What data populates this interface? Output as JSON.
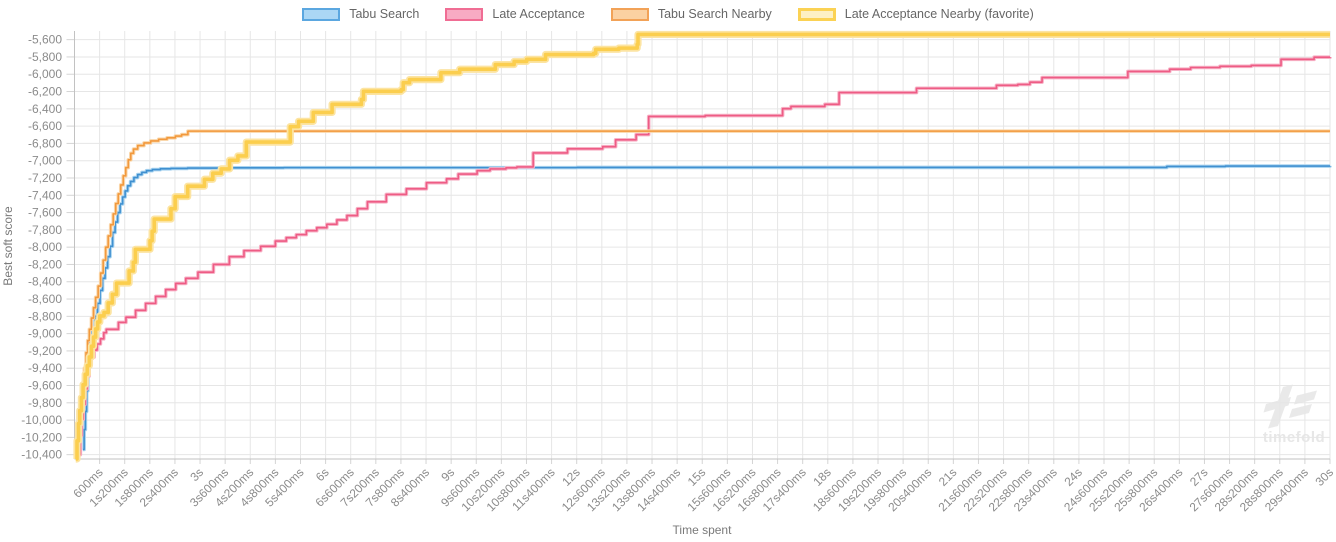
{
  "legend": {
    "items": [
      {
        "label": "Tabu Search"
      },
      {
        "label": "Late Acceptance"
      },
      {
        "label": "Tabu Search Nearby"
      },
      {
        "label": "Late Acceptance Nearby (favorite)"
      }
    ]
  },
  "axes": {
    "y_title": "Best soft score",
    "x_title": "Time spent"
  },
  "watermark": {
    "text": "timefold"
  },
  "colors": {
    "grid": "#e6e6e6",
    "axis_line": "#c2c2c2",
    "tick_stub": "#d4d4d4",
    "tick_text": "#8b8b8b"
  },
  "chart_data": {
    "type": "line",
    "stepped": true,
    "title": "",
    "xlabel": "Time spent",
    "ylabel": "Best soft score",
    "xlim_ms": [
      0,
      30000
    ],
    "ylim": [
      -10450,
      -5500
    ],
    "grid": true,
    "legend_position": "top",
    "x_ticks": [
      {
        "t": 600,
        "label": "600ms"
      },
      {
        "t": 1200,
        "label": "1s200ms"
      },
      {
        "t": 1800,
        "label": "1s800ms"
      },
      {
        "t": 2400,
        "label": "2s400ms"
      },
      {
        "t": 3000,
        "label": "3s"
      },
      {
        "t": 3600,
        "label": "3s600ms"
      },
      {
        "t": 4200,
        "label": "4s200ms"
      },
      {
        "t": 4800,
        "label": "4s800ms"
      },
      {
        "t": 5400,
        "label": "5s400ms"
      },
      {
        "t": 6000,
        "label": "6s"
      },
      {
        "t": 6600,
        "label": "6s600ms"
      },
      {
        "t": 7200,
        "label": "7s200ms"
      },
      {
        "t": 7800,
        "label": "7s800ms"
      },
      {
        "t": 8400,
        "label": "8s400ms"
      },
      {
        "t": 9000,
        "label": "9s"
      },
      {
        "t": 9600,
        "label": "9s600ms"
      },
      {
        "t": 10200,
        "label": "10s200ms"
      },
      {
        "t": 10800,
        "label": "10s800ms"
      },
      {
        "t": 11400,
        "label": "11s400ms"
      },
      {
        "t": 12000,
        "label": "12s"
      },
      {
        "t": 12600,
        "label": "12s600ms"
      },
      {
        "t": 13200,
        "label": "13s200ms"
      },
      {
        "t": 13800,
        "label": "13s800ms"
      },
      {
        "t": 14400,
        "label": "14s400ms"
      },
      {
        "t": 15000,
        "label": "15s"
      },
      {
        "t": 15600,
        "label": "15s600ms"
      },
      {
        "t": 16200,
        "label": "16s200ms"
      },
      {
        "t": 16800,
        "label": "16s800ms"
      },
      {
        "t": 17400,
        "label": "17s400ms"
      },
      {
        "t": 18000,
        "label": "18s"
      },
      {
        "t": 18600,
        "label": "18s600ms"
      },
      {
        "t": 19200,
        "label": "19s200ms"
      },
      {
        "t": 19800,
        "label": "19s800ms"
      },
      {
        "t": 20400,
        "label": "20s400ms"
      },
      {
        "t": 21000,
        "label": "21s"
      },
      {
        "t": 21600,
        "label": "21s600ms"
      },
      {
        "t": 22200,
        "label": "22s200ms"
      },
      {
        "t": 22800,
        "label": "22s800ms"
      },
      {
        "t": 23400,
        "label": "23s400ms"
      },
      {
        "t": 24000,
        "label": "24s"
      },
      {
        "t": 24600,
        "label": "24s600ms"
      },
      {
        "t": 25200,
        "label": "25s200ms"
      },
      {
        "t": 25800,
        "label": "25s800ms"
      },
      {
        "t": 26400,
        "label": "26s400ms"
      },
      {
        "t": 27000,
        "label": "27s"
      },
      {
        "t": 27600,
        "label": "27s600ms"
      },
      {
        "t": 28200,
        "label": "28s200ms"
      },
      {
        "t": 28800,
        "label": "28s800ms"
      },
      {
        "t": 29400,
        "label": "29s400ms"
      },
      {
        "t": 30000,
        "label": "30s"
      }
    ],
    "y_ticks": [
      {
        "v": -5600,
        "label": "-5,600"
      },
      {
        "v": -5800,
        "label": "-5,800"
      },
      {
        "v": -6000,
        "label": "-6,000"
      },
      {
        "v": -6200,
        "label": "-6,200"
      },
      {
        "v": -6400,
        "label": "-6,400"
      },
      {
        "v": -6600,
        "label": "-6,600"
      },
      {
        "v": -6800,
        "label": "-6,800"
      },
      {
        "v": -7000,
        "label": "-7,000"
      },
      {
        "v": -7200,
        "label": "-7,200"
      },
      {
        "v": -7400,
        "label": "-7,400"
      },
      {
        "v": -7600,
        "label": "-7,600"
      },
      {
        "v": -7800,
        "label": "-7,800"
      },
      {
        "v": -8000,
        "label": "-8,000"
      },
      {
        "v": -8200,
        "label": "-8,200"
      },
      {
        "v": -8400,
        "label": "-8,400"
      },
      {
        "v": -8600,
        "label": "-8,600"
      },
      {
        "v": -8800,
        "label": "-8,800"
      },
      {
        "v": -9000,
        "label": "-9,000"
      },
      {
        "v": -9200,
        "label": "-9,200"
      },
      {
        "v": -9400,
        "label": "-9,400"
      },
      {
        "v": -9600,
        "label": "-9,600"
      },
      {
        "v": -9800,
        "label": "-9,800"
      },
      {
        "v": -10000,
        "label": "-10,000"
      },
      {
        "v": -10200,
        "label": "-10,200"
      },
      {
        "v": -10400,
        "label": "-10,400"
      }
    ],
    "series": [
      {
        "name": "Tabu Search",
        "slug": "tabu-search",
        "core_color": "#4090d0",
        "halo_color": "#a9d4f0",
        "swatch_fill": "#abd7f5",
        "swatch_border": "#5ba7e0",
        "core_width": 1.6,
        "halo_width": 3.6,
        "swatch_border_width": 2,
        "points": [
          [
            200,
            -10340
          ],
          [
            230,
            -10110
          ],
          [
            260,
            -9900
          ],
          [
            290,
            -9660
          ],
          [
            320,
            -9420
          ],
          [
            350,
            -9210
          ],
          [
            380,
            -9060
          ],
          [
            430,
            -8940
          ],
          [
            490,
            -8800
          ],
          [
            550,
            -8650
          ],
          [
            610,
            -8500
          ],
          [
            670,
            -8360
          ],
          [
            730,
            -8240
          ],
          [
            790,
            -8110
          ],
          [
            850,
            -7990
          ],
          [
            910,
            -7830
          ],
          [
            970,
            -7710
          ],
          [
            1030,
            -7600
          ],
          [
            1090,
            -7500
          ],
          [
            1150,
            -7420
          ],
          [
            1210,
            -7350
          ],
          [
            1270,
            -7290
          ],
          [
            1340,
            -7240
          ],
          [
            1420,
            -7195
          ],
          [
            1510,
            -7160
          ],
          [
            1610,
            -7135
          ],
          [
            1720,
            -7115
          ],
          [
            1860,
            -7103
          ],
          [
            2050,
            -7094
          ],
          [
            2300,
            -7089
          ],
          [
            2700,
            -7085
          ],
          [
            3600,
            -7082
          ],
          [
            5000,
            -7080
          ],
          [
            12000,
            -7078
          ],
          [
            26100,
            -7066
          ],
          [
            27500,
            -7062
          ],
          [
            30000,
            -7060
          ]
        ]
      },
      {
        "name": "Late Acceptance",
        "slug": "late-acceptance",
        "core_color": "#ee5c85",
        "halo_color": "#f7b3c7",
        "swatch_fill": "#f8abc3",
        "swatch_border": "#f06d94",
        "core_width": 1.6,
        "halo_width": 3.6,
        "swatch_border_width": 2,
        "points": [
          [
            110,
            -10400
          ],
          [
            140,
            -10180
          ],
          [
            170,
            -9990
          ],
          [
            210,
            -9820
          ],
          [
            250,
            -9640
          ],
          [
            300,
            -9490
          ],
          [
            350,
            -9360
          ],
          [
            400,
            -9270
          ],
          [
            470,
            -9190
          ],
          [
            540,
            -9120
          ],
          [
            620,
            -9060
          ],
          [
            700,
            -8990
          ],
          [
            760,
            -8950
          ],
          [
            1050,
            -8870
          ],
          [
            1230,
            -8810
          ],
          [
            1460,
            -8730
          ],
          [
            1700,
            -8650
          ],
          [
            1940,
            -8570
          ],
          [
            2180,
            -8490
          ],
          [
            2420,
            -8420
          ],
          [
            2660,
            -8360
          ],
          [
            2950,
            -8290
          ],
          [
            3320,
            -8200
          ],
          [
            3700,
            -8110
          ],
          [
            4050,
            -8040
          ],
          [
            4450,
            -7990
          ],
          [
            4800,
            -7930
          ],
          [
            5060,
            -7890
          ],
          [
            5300,
            -7855
          ],
          [
            5540,
            -7810
          ],
          [
            5790,
            -7775
          ],
          [
            6030,
            -7735
          ],
          [
            6270,
            -7685
          ],
          [
            6510,
            -7635
          ],
          [
            6760,
            -7555
          ],
          [
            7000,
            -7475
          ],
          [
            7450,
            -7390
          ],
          [
            7930,
            -7325
          ],
          [
            8410,
            -7255
          ],
          [
            8890,
            -7210
          ],
          [
            9170,
            -7155
          ],
          [
            9620,
            -7115
          ],
          [
            9930,
            -7095
          ],
          [
            10310,
            -7082
          ],
          [
            10570,
            -7072
          ],
          [
            10960,
            -6910
          ],
          [
            11780,
            -6862
          ],
          [
            12620,
            -6838
          ],
          [
            12930,
            -6758
          ],
          [
            13420,
            -6698
          ],
          [
            13720,
            -6488
          ],
          [
            15070,
            -6478
          ],
          [
            16920,
            -6398
          ],
          [
            17120,
            -6372
          ],
          [
            17930,
            -6348
          ],
          [
            18270,
            -6212
          ],
          [
            20120,
            -6162
          ],
          [
            22030,
            -6128
          ],
          [
            22540,
            -6118
          ],
          [
            22830,
            -6092
          ],
          [
            23120,
            -6038
          ],
          [
            25170,
            -5968
          ],
          [
            26170,
            -5942
          ],
          [
            26670,
            -5922
          ],
          [
            27370,
            -5908
          ],
          [
            28120,
            -5898
          ],
          [
            28830,
            -5828
          ],
          [
            29620,
            -5803
          ],
          [
            30000,
            -5800
          ]
        ]
      },
      {
        "name": "Tabu Search Nearby",
        "slug": "tabu-search-nearby",
        "core_color": "#f2993d",
        "halo_color": "#fad7ab",
        "swatch_fill": "#fbd1a2",
        "swatch_border": "#f2a257",
        "core_width": 1.6,
        "halo_width": 3.6,
        "swatch_border_width": 2,
        "points": [
          [
            60,
            -10380
          ],
          [
            90,
            -10150
          ],
          [
            120,
            -9950
          ],
          [
            155,
            -9790
          ],
          [
            195,
            -9590
          ],
          [
            235,
            -9400
          ],
          [
            275,
            -9220
          ],
          [
            315,
            -9080
          ],
          [
            355,
            -8950
          ],
          [
            405,
            -8820
          ],
          [
            455,
            -8700
          ],
          [
            505,
            -8580
          ],
          [
            565,
            -8450
          ],
          [
            625,
            -8300
          ],
          [
            685,
            -8150
          ],
          [
            745,
            -8000
          ],
          [
            805,
            -7870
          ],
          [
            865,
            -7740
          ],
          [
            925,
            -7615
          ],
          [
            985,
            -7495
          ],
          [
            1045,
            -7385
          ],
          [
            1105,
            -7280
          ],
          [
            1165,
            -7175
          ],
          [
            1225,
            -7080
          ],
          [
            1285,
            -6990
          ],
          [
            1345,
            -6915
          ],
          [
            1410,
            -6865
          ],
          [
            1510,
            -6825
          ],
          [
            1660,
            -6795
          ],
          [
            1820,
            -6772
          ],
          [
            2010,
            -6752
          ],
          [
            2210,
            -6735
          ],
          [
            2410,
            -6715
          ],
          [
            2560,
            -6698
          ],
          [
            2710,
            -6658
          ],
          [
            30000,
            -6658
          ]
        ]
      },
      {
        "name": "Late Acceptance Nearby (favorite)",
        "slug": "late-acceptance-nearby",
        "core_color": "#fbce4e",
        "halo_color": "#fce4a2",
        "swatch_fill": "#fdf0c4",
        "swatch_border": "#fbd254",
        "core_width": 3.6,
        "halo_width": 7.2,
        "swatch_border_width": 3,
        "points": [
          [
            30,
            -10450
          ],
          [
            60,
            -10240
          ],
          [
            95,
            -10040
          ],
          [
            125,
            -9890
          ],
          [
            165,
            -9740
          ],
          [
            205,
            -9590
          ],
          [
            255,
            -9470
          ],
          [
            305,
            -9370
          ],
          [
            355,
            -9270
          ],
          [
            405,
            -9145
          ],
          [
            455,
            -9040
          ],
          [
            505,
            -8945
          ],
          [
            555,
            -8865
          ],
          [
            605,
            -8795
          ],
          [
            705,
            -8755
          ],
          [
            805,
            -8645
          ],
          [
            905,
            -8545
          ],
          [
            1005,
            -8415
          ],
          [
            1305,
            -8275
          ],
          [
            1405,
            -8175
          ],
          [
            1455,
            -8025
          ],
          [
            1805,
            -7925
          ],
          [
            1855,
            -7815
          ],
          [
            1905,
            -7675
          ],
          [
            2305,
            -7555
          ],
          [
            2405,
            -7415
          ],
          [
            2705,
            -7295
          ],
          [
            3105,
            -7215
          ],
          [
            3305,
            -7145
          ],
          [
            3505,
            -7095
          ],
          [
            3705,
            -6995
          ],
          [
            3905,
            -6945
          ],
          [
            4105,
            -6785
          ],
          [
            5155,
            -6605
          ],
          [
            5355,
            -6545
          ],
          [
            5705,
            -6442
          ],
          [
            6155,
            -6348
          ],
          [
            6855,
            -6292
          ],
          [
            6905,
            -6198
          ],
          [
            7805,
            -6178
          ],
          [
            7855,
            -6098
          ],
          [
            8005,
            -6062
          ],
          [
            8755,
            -5982
          ],
          [
            9205,
            -5942
          ],
          [
            10055,
            -5888
          ],
          [
            10505,
            -5852
          ],
          [
            10805,
            -5828
          ],
          [
            11255,
            -5772
          ],
          [
            12405,
            -5758
          ],
          [
            12455,
            -5712
          ],
          [
            13005,
            -5698
          ],
          [
            13445,
            -5655
          ],
          [
            13465,
            -5540
          ],
          [
            30000,
            -5540
          ]
        ]
      }
    ]
  }
}
